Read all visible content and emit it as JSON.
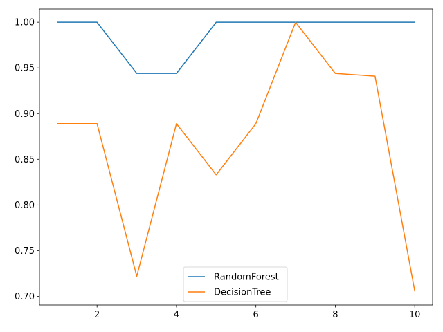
{
  "chart_data": {
    "type": "line",
    "title": "",
    "xlabel": "",
    "ylabel": "",
    "xlim": [
      0.55,
      10.45
    ],
    "ylim": [
      0.6905,
      1.0145
    ],
    "xticks": [
      2,
      4,
      6,
      8,
      10
    ],
    "xtick_labels": [
      "2",
      "4",
      "6",
      "8",
      "10"
    ],
    "yticks": [
      0.7,
      0.75,
      0.8,
      0.85,
      0.9,
      0.95,
      1.0
    ],
    "ytick_labels": [
      "0.70",
      "0.75",
      "0.80",
      "0.85",
      "0.90",
      "0.95",
      "1.00"
    ],
    "grid": false,
    "legend_position": "lower-center",
    "x": [
      1,
      2,
      3,
      4,
      5,
      6,
      7,
      8,
      9,
      10
    ],
    "series": [
      {
        "name": "RandomForest",
        "color": "#1f77b4",
        "values": [
          1.0,
          1.0,
          0.944,
          0.944,
          1.0,
          1.0,
          1.0,
          1.0,
          1.0,
          1.0
        ]
      },
      {
        "name": "DecisionTree",
        "color": "#ff7f0e",
        "values": [
          0.889,
          0.889,
          0.722,
          0.889,
          0.833,
          0.889,
          1.0,
          0.944,
          0.941,
          0.706
        ]
      }
    ]
  }
}
